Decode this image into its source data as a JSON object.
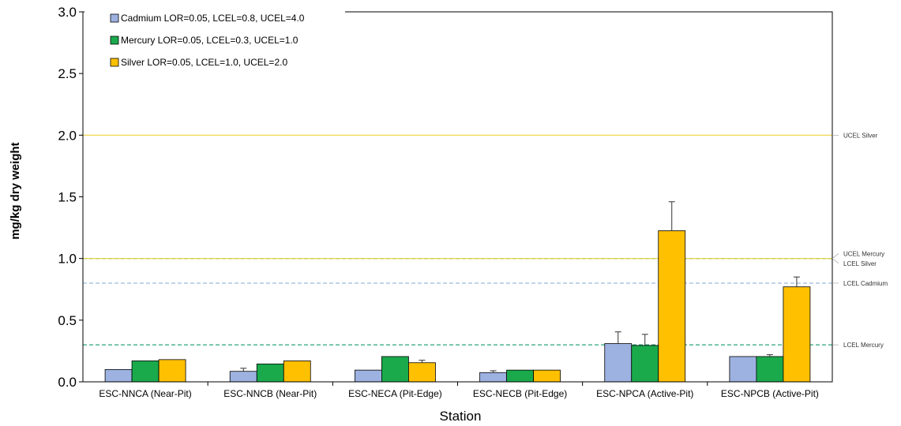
{
  "chart_data": {
    "type": "bar",
    "title": "",
    "xlabel": "Station",
    "ylabel": "mg/kg dry weight",
    "ylim": [
      0,
      3.0
    ],
    "yticks": [
      0.0,
      0.5,
      1.0,
      1.5,
      2.0,
      2.5,
      3.0
    ],
    "ytick_labels": [
      "0.0",
      "0.5",
      "1.0",
      "1.5",
      "2.0",
      "2.5",
      "3.0"
    ],
    "grid": false,
    "legend_position": "top-left",
    "categories": [
      "ESC-NNCA (Near-Pit)",
      "ESC-NNCB (Near-Pit)",
      "ESC-NECA (Pit-Edge)",
      "ESC-NECB (Pit-Edge)",
      "ESC-NPCA (Active-Pit)",
      "ESC-NPCB (Active-Pit)"
    ],
    "series": [
      {
        "name": "Cadmium LOR=0.05, LCEL=0.8, UCEL=4.0",
        "color": "#9db2e0",
        "values": [
          0.1,
          0.085,
          0.095,
          0.075,
          0.31,
          0.205
        ],
        "errors": [
          0.0,
          0.025,
          0.0,
          0.015,
          0.095,
          0.0
        ]
      },
      {
        "name": "Mercury LOR=0.05, LCEL=0.3, UCEL=1.0",
        "color": "#1aaa4c",
        "values": [
          0.17,
          0.145,
          0.205,
          0.095,
          0.295,
          0.205
        ],
        "errors": [
          0.0,
          0.0,
          0.0,
          0.0,
          0.09,
          0.015
        ]
      },
      {
        "name": "Silver LOR=0.05, LCEL=1.0, UCEL=2.0",
        "color": "#ffc000",
        "values": [
          0.18,
          0.17,
          0.155,
          0.095,
          1.225,
          0.77
        ],
        "errors": [
          0.0,
          0.0,
          0.02,
          0.0,
          0.235,
          0.08
        ]
      }
    ],
    "reference_lines": [
      {
        "label": "UCEL Silver",
        "value": 2.0,
        "color": "#e8d23a",
        "style": "solid"
      },
      {
        "label": "UCEL Mercury",
        "value": 1.0,
        "color": "#1aaa4c",
        "style": "dashed"
      },
      {
        "label": "LCEL Silver",
        "value": 1.0,
        "color": "#e8d23a",
        "style": "solid"
      },
      {
        "label": "LCEL Cadmium",
        "value": 0.8,
        "color": "#8fb3d9",
        "style": "dashed"
      },
      {
        "label": "LCEL Mercury",
        "value": 0.3,
        "color": "#2aa57a",
        "style": "dashed"
      }
    ]
  }
}
